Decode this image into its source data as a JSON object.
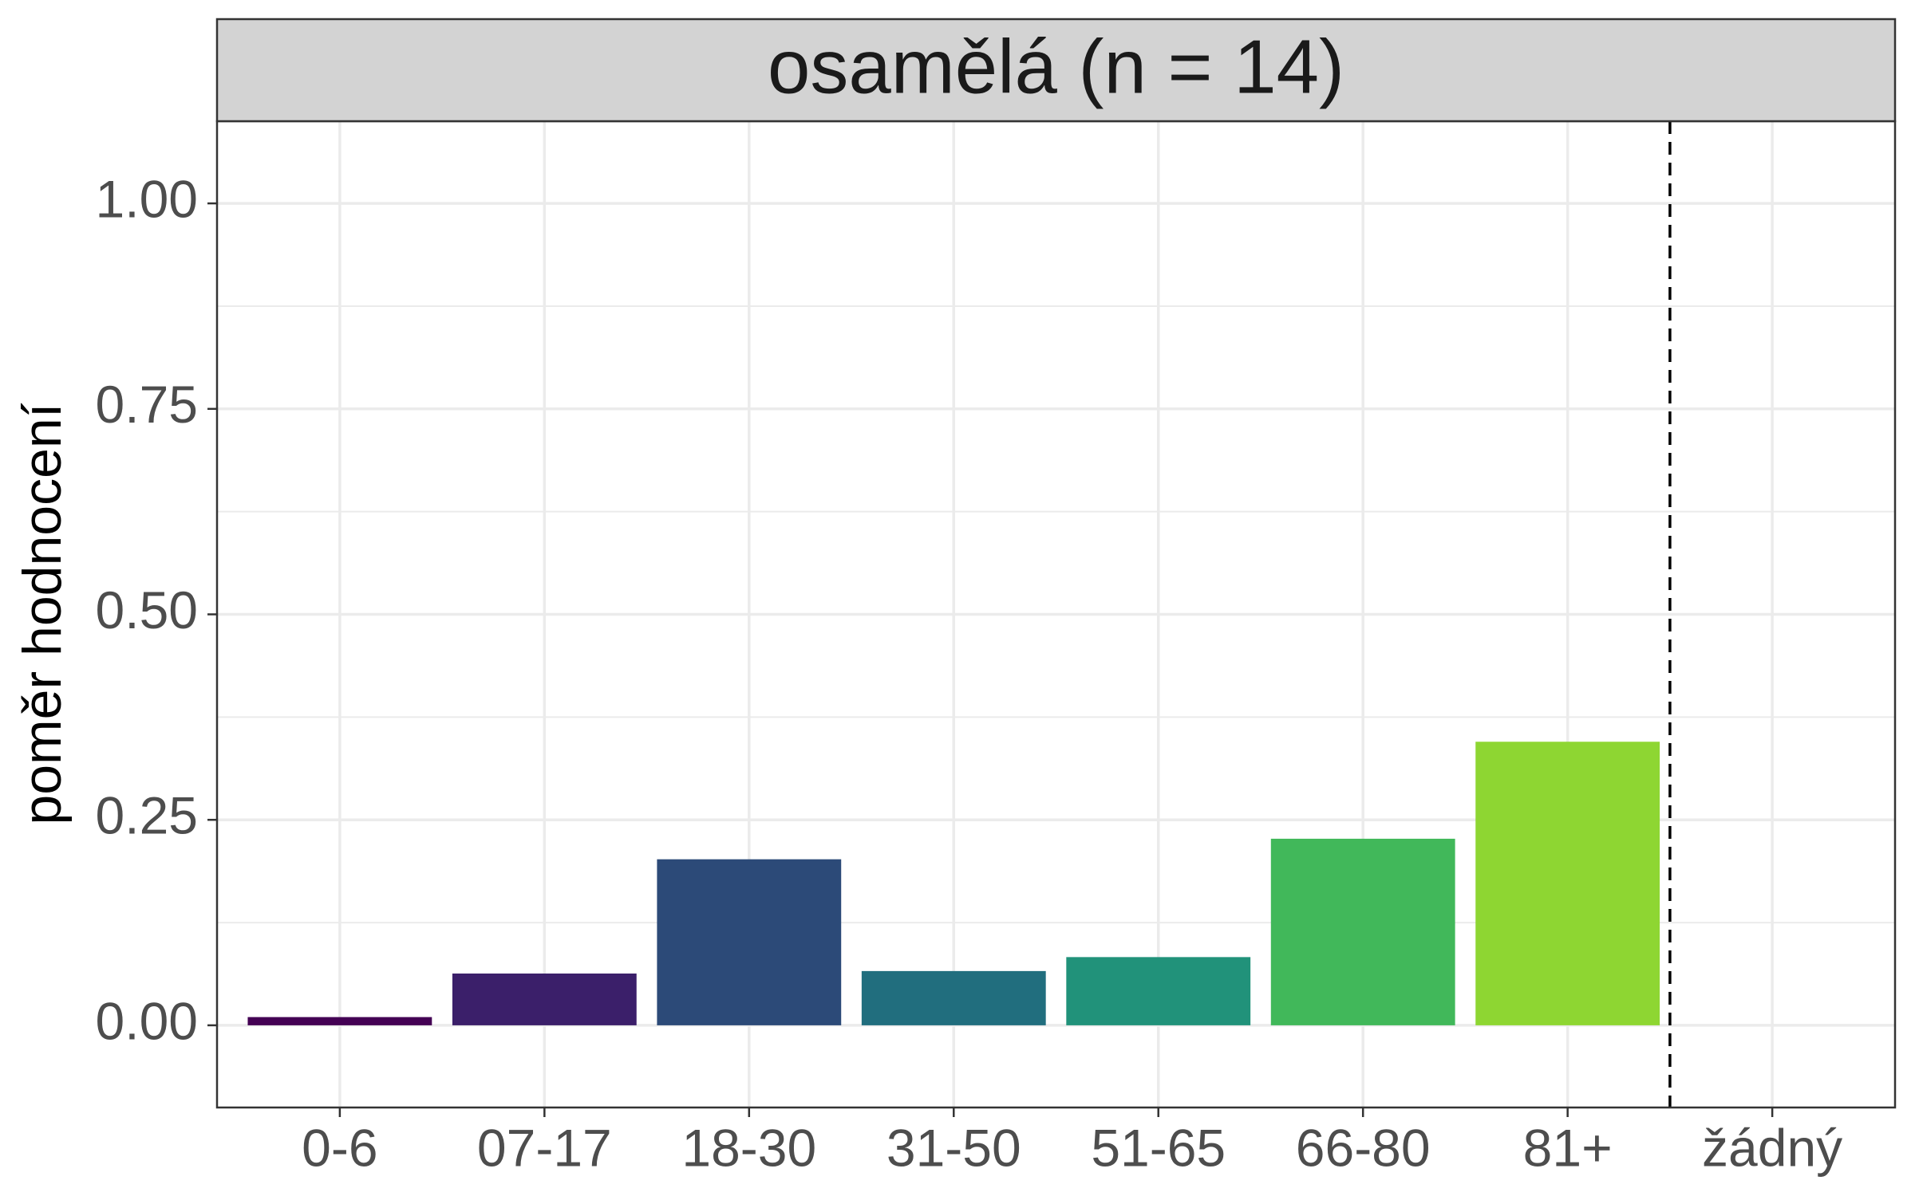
{
  "chart_data": {
    "type": "bar",
    "title": "osamělá (n = 14)",
    "ylabel": "poměr hodnocení",
    "xlabel": "",
    "ylim": [
      -0.1,
      1.1
    ],
    "yticks": [
      "0.00",
      "0.25",
      "0.50",
      "0.75",
      "1.00"
    ],
    "ytick_values": [
      0,
      0.25,
      0.5,
      0.75,
      1.0
    ],
    "categories": [
      "0-6",
      "07-17",
      "18-30",
      "31-50",
      "51-65",
      "66-80",
      "81+",
      "žádný"
    ],
    "values": [
      0.01,
      0.063,
      0.202,
      0.066,
      0.083,
      0.227,
      0.345,
      0
    ],
    "colors": [
      "#440154",
      "#3B1F6A",
      "#2C4A78",
      "#216E7E",
      "#21927A",
      "#41B85A",
      "#8ED632",
      "#FDE725"
    ],
    "reference_line": {
      "between": [
        "81+",
        "žádný"
      ],
      "style": "dashed",
      "color": "#000000"
    },
    "grid": true,
    "legend": "none",
    "strip_background": "#D3D3D3",
    "panel_border": "#333333",
    "grid_color": "#EBEBEB"
  }
}
